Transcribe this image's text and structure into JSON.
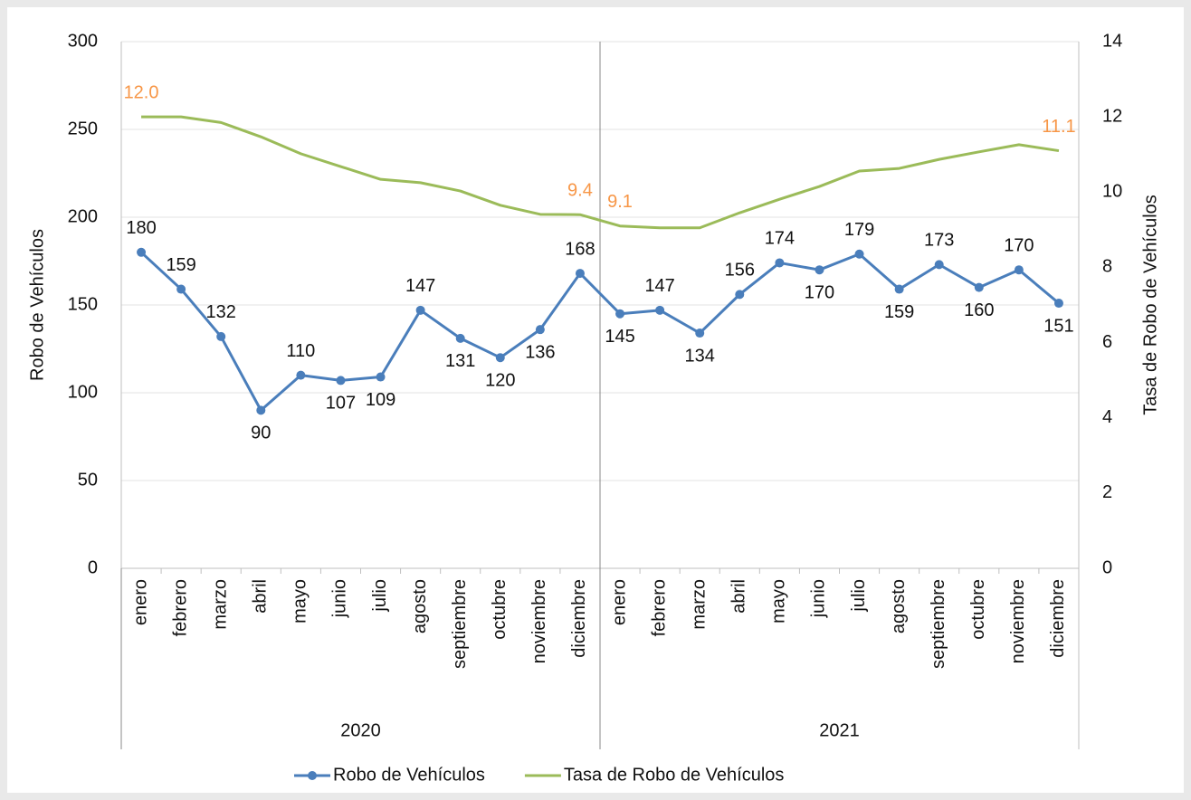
{
  "chart_data": {
    "type": "line",
    "categories": [
      "enero",
      "febrero",
      "marzo",
      "abril",
      "mayo",
      "junio",
      "julio",
      "agosto",
      "septiembre",
      "octubre",
      "noviembre",
      "diciembre",
      "enero",
      "febrero",
      "marzo",
      "abril",
      "mayo",
      "junio",
      "julio",
      "agosto",
      "septiembre",
      "octubre",
      "noviembre",
      "diciembre"
    ],
    "groups": [
      "2020",
      "2021"
    ],
    "y_label": "Robo de Vehículos",
    "y2_label": "Tasa de Robo de Vehículos",
    "ylim": [
      0,
      300
    ],
    "yticks": [
      0,
      50,
      100,
      150,
      200,
      250,
      300
    ],
    "y2lim": [
      0,
      14
    ],
    "y2ticks": [
      0,
      2,
      4,
      6,
      8,
      10,
      12,
      14
    ],
    "grid": true,
    "legend": "bottom",
    "series": [
      {
        "name": "Robo de Vehículos",
        "color": "#4a7ebb",
        "markers": true,
        "label_color": "#111111",
        "values": [
          180,
          159,
          132,
          90,
          110,
          107,
          109,
          147,
          131,
          120,
          136,
          168,
          145,
          147,
          134,
          156,
          174,
          170,
          179,
          159,
          173,
          160,
          170,
          151
        ]
      },
      {
        "name": "Tasa de Robo de Vehículos",
        "color": "#9bbb59",
        "axis": "y2",
        "markers": false,
        "label_color": "#f79646",
        "values": [
          12,
          12,
          11.85,
          11.47,
          11.02,
          10.68,
          10.34,
          10.25,
          10.03,
          9.65,
          9.41,
          9.4,
          9.1,
          9.05,
          9.05,
          9.45,
          9.81,
          10.15,
          10.56,
          10.63,
          10.87,
          11.07,
          11.26,
          11.1
        ],
        "value_labels": [
          "12.0",
          null,
          null,
          null,
          null,
          null,
          null,
          null,
          null,
          null,
          null,
          "9.4",
          "9.1",
          null,
          null,
          null,
          null,
          null,
          null,
          null,
          null,
          null,
          null,
          "11.1"
        ]
      }
    ]
  }
}
